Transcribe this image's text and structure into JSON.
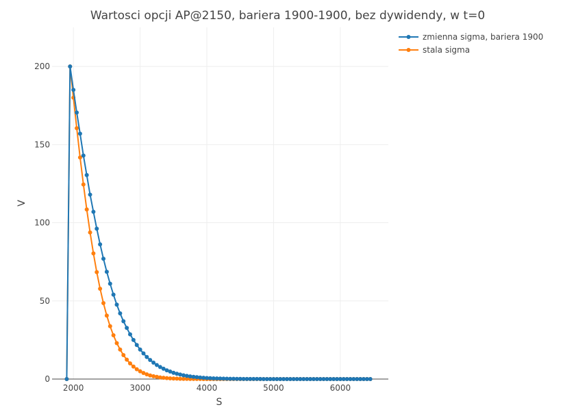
{
  "chart_data": {
    "type": "line",
    "title": "Wartosci opcji AP@2150, bariera 1900-1900, bez dywidendy, w t=0",
    "xlabel": "S",
    "ylabel": "V",
    "xlim": [
      1680,
      6720
    ],
    "ylim": [
      0,
      225
    ],
    "xticks": [
      2000,
      3000,
      4000,
      5000,
      6000
    ],
    "yticks": [
      0,
      50,
      100,
      150,
      200
    ],
    "grid": true,
    "legend_position": "top-right",
    "series": [
      {
        "name": "zmienna sigma, bariera 1900",
        "color": "#1f77b4",
        "x": [
          1900,
          1950,
          2000,
          2050,
          2100,
          2150,
          2200,
          2250,
          2300,
          2350,
          2400,
          2450,
          2500,
          2550,
          2600,
          2650,
          2700,
          2750,
          2800,
          2850,
          2900,
          2950,
          3000,
          3050,
          3100,
          3150,
          3200,
          3250,
          3300,
          3350,
          3400,
          3450,
          3500,
          3550,
          3600,
          3650,
          3700,
          3750,
          3800,
          3850,
          3900,
          3950,
          4000,
          4050,
          4100,
          4150,
          4200,
          4250,
          4300,
          4350,
          4400,
          4450,
          4500,
          4550,
          4600,
          4650,
          4700,
          4750,
          4800,
          4850,
          4900,
          4950,
          5000,
          5050,
          5100,
          5150,
          5200,
          5250,
          5300,
          5350,
          5400,
          5450,
          5500,
          5550,
          5600,
          5650,
          5700,
          5750,
          5800,
          5850,
          5900,
          5950,
          6000,
          6050,
          6100,
          6150,
          6200,
          6250,
          6300,
          6350,
          6400,
          6450
        ],
        "y": [
          0,
          200,
          185,
          170.5,
          157,
          143,
          130.5,
          118,
          107,
          96.2,
          86.2,
          77,
          68.6,
          61,
          54,
          47.6,
          42,
          37,
          32.7,
          28.6,
          25,
          21.8,
          18.9,
          16.4,
          14.1,
          12.2,
          10.5,
          9,
          7.7,
          6.6,
          5.6,
          4.8,
          4,
          3.4,
          2.9,
          2.4,
          2,
          1.7,
          1.4,
          1.2,
          1,
          0.82,
          0.68,
          0.56,
          0.46,
          0.38,
          0.31,
          0.26,
          0.21,
          0.17,
          0.14,
          0.12,
          0.1,
          0.08,
          0.06,
          0.05,
          0.04,
          0.03,
          0.03,
          0.02,
          0.02,
          0.01,
          0.01,
          0.01,
          0.01,
          0,
          0,
          0,
          0,
          0,
          0,
          0,
          0,
          0,
          0,
          0,
          0,
          0,
          0,
          0,
          0,
          0,
          0,
          0,
          0,
          0,
          0,
          0,
          0,
          0,
          0,
          0
        ]
      },
      {
        "name": "stala sigma",
        "color": "#ff7f0e",
        "x": [
          1900,
          1950,
          2000,
          2050,
          2100,
          2150,
          2200,
          2250,
          2300,
          2350,
          2400,
          2450,
          2500,
          2550,
          2600,
          2650,
          2700,
          2750,
          2800,
          2850,
          2900,
          2950,
          3000,
          3050,
          3100,
          3150,
          3200,
          3250,
          3300,
          3350,
          3400,
          3450,
          3500,
          3550,
          3600,
          3650,
          3700,
          3750,
          3800,
          3850,
          3900,
          3950,
          4000,
          4050,
          4100,
          4150,
          4200,
          4250,
          4300,
          4350,
          4400,
          4450,
          4500,
          4550,
          4600,
          4650,
          4700,
          4750,
          4800,
          4850,
          4900,
          4950,
          5000,
          5050,
          5100,
          5150,
          5200,
          5250,
          5300,
          5350,
          5400,
          5450,
          5500,
          5550,
          5600,
          5650,
          5700,
          5750,
          5800,
          5850,
          5900,
          5950,
          6000,
          6050,
          6100,
          6150,
          6200,
          6250,
          6300,
          6350,
          6400,
          6450
        ],
        "y": [
          0,
          200,
          180,
          160.5,
          141.8,
          124.5,
          108.5,
          93.8,
          80.4,
          68.4,
          57.8,
          48.6,
          40.6,
          33.8,
          28,
          23,
          18.9,
          15.3,
          12.4,
          10,
          8,
          6.3,
          5,
          3.9,
          3,
          2.3,
          1.8,
          1.4,
          1.05,
          0.8,
          0.6,
          0.45,
          0.33,
          0.25,
          0.18,
          0.13,
          0.1,
          0.07,
          0.05,
          0.04,
          0.03,
          0.02,
          0.01,
          0.01,
          0.01,
          0,
          0,
          0,
          0,
          0,
          0,
          0,
          0,
          0,
          0,
          0,
          0,
          0,
          0,
          0,
          0,
          0,
          0,
          0,
          0,
          0,
          0,
          0,
          0,
          0,
          0,
          0,
          0,
          0,
          0,
          0,
          0,
          0,
          0,
          0,
          0,
          0,
          0,
          0,
          0,
          0,
          0,
          0,
          0,
          0,
          0,
          0
        ]
      }
    ]
  }
}
